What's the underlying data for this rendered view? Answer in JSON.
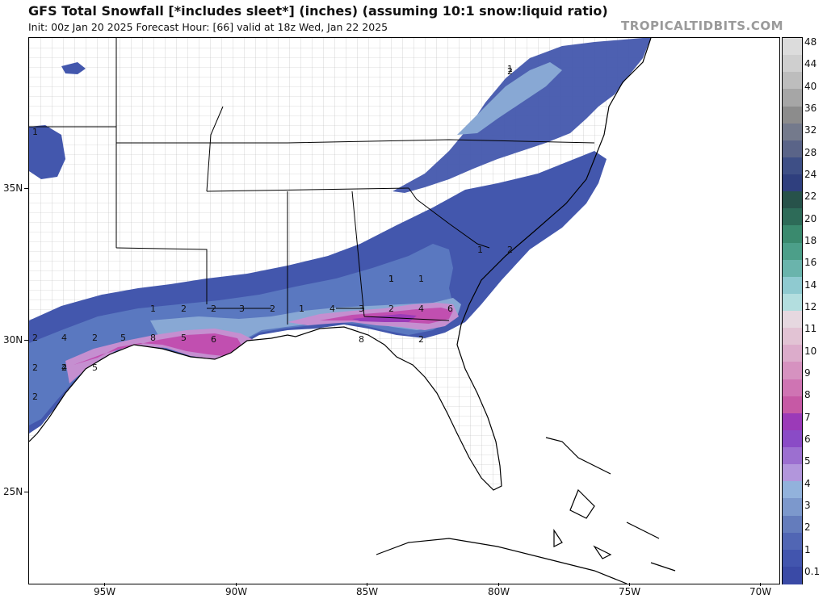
{
  "header": {
    "title": "GFS Total Snowfall [*includes sleet*] (inches) (assuming 10:1 snow:liquid ratio)",
    "subtitle": "Init: 00z Jan 20 2025   Forecast Hour: [66]   valid at 18z Wed, Jan 22 2025",
    "brand": "TROPICALTIDBITS.COM"
  },
  "axes": {
    "lat_labels": [
      "35N",
      "30N",
      "25N"
    ],
    "lon_labels": [
      "95W",
      "90W",
      "85W",
      "80W",
      "75W",
      "70W"
    ]
  },
  "legend": {
    "labels": [
      "48",
      "44",
      "40",
      "36",
      "32",
      "28",
      "24",
      "22",
      "20",
      "18",
      "16",
      "14",
      "12",
      "11",
      "10",
      "9",
      "8",
      "7",
      "6",
      "5",
      "4",
      "3",
      "2",
      "1",
      "0.1"
    ],
    "colors": [
      "#dcdcdc",
      "#cfcfcf",
      "#bdbdbd",
      "#a6a6a6",
      "#8c8c8c",
      "#747a8c",
      "#5a6488",
      "#3e4f86",
      "#2f3f7e",
      "#27524a",
      "#2d6b58",
      "#3a8a6e",
      "#4c9f89",
      "#6ab4ac",
      "#8fcad0",
      "#b3dedf",
      "#e6d8e0",
      "#e2c3d4",
      "#dcaccb",
      "#d692c0",
      "#cf74b3",
      "#c659a5",
      "#9b3ab8",
      "#8a4bc6",
      "#9c6fd0",
      "#b296dc",
      "#92b2dc",
      "#7c98cc",
      "#647cbc",
      "#5166b4",
      "#4255ae",
      "#3a4aa6"
    ]
  },
  "contour_labels": [
    "1",
    "2",
    "4",
    "2",
    "5",
    "8",
    "5",
    "6",
    "1",
    "2",
    "2",
    "3",
    "2",
    "1",
    "4",
    "3",
    "2",
    "4",
    "6",
    "2",
    "8",
    "2",
    "1",
    "1",
    "1",
    "2",
    "2",
    "2",
    "4",
    "5",
    "1",
    "2",
    "1"
  ],
  "chart_data": {
    "type": "heatmap",
    "variable": "Total Snowfall (inches)",
    "units": "inches",
    "legend_levels": [
      0.1,
      1,
      2,
      3,
      4,
      5,
      6,
      7,
      8,
      9,
      10,
      11,
      12,
      14,
      16,
      18,
      20,
      22,
      24,
      28,
      32,
      36,
      40,
      44,
      48
    ]
  }
}
